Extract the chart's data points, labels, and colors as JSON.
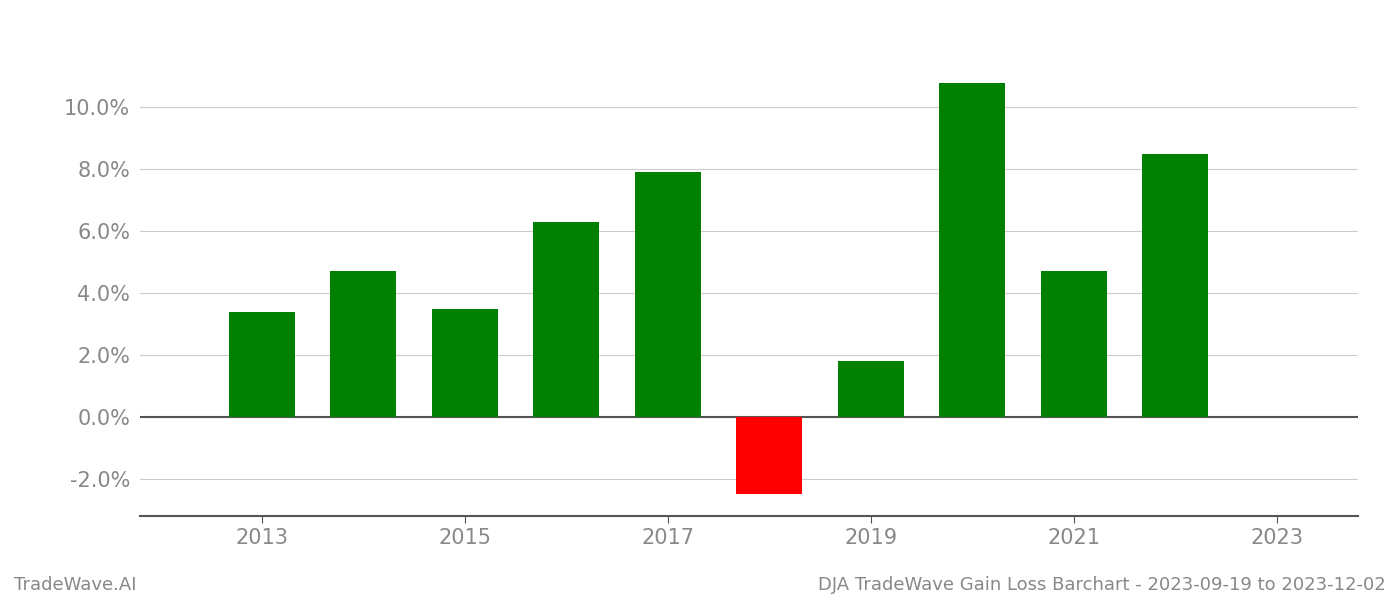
{
  "years": [
    2013,
    2014,
    2015,
    2016,
    2017,
    2018,
    2019,
    2020,
    2021,
    2022
  ],
  "values": [
    3.4,
    4.7,
    3.5,
    6.3,
    7.9,
    -2.5,
    1.8,
    10.8,
    4.7,
    8.5
  ],
  "bar_colors": [
    "#008000",
    "#008000",
    "#008000",
    "#008000",
    "#008000",
    "#ff0000",
    "#008000",
    "#008000",
    "#008000",
    "#008000"
  ],
  "bar_width": 0.65,
  "ylim": [
    -3.2,
    12.5
  ],
  "yticks": [
    -2.0,
    0.0,
    2.0,
    4.0,
    6.0,
    8.0,
    10.0
  ],
  "xticks": [
    2013,
    2015,
    2017,
    2019,
    2021,
    2023
  ],
  "xlim": [
    2011.8,
    2023.8
  ],
  "footer_left": "TradeWave.AI",
  "footer_right": "DJA TradeWave Gain Loss Barchart - 2023-09-19 to 2023-12-02",
  "background_color": "#ffffff",
  "grid_color": "#cccccc",
  "tick_color": "#888888",
  "spine_color": "#555555",
  "footer_fontsize": 13,
  "tick_fontsize": 15
}
